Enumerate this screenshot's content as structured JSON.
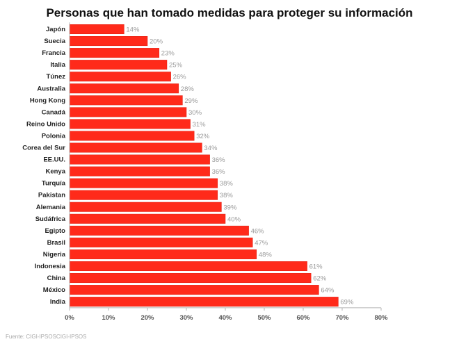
{
  "source_note": "Fuente: CIGI-IPSOSCIGI-IPSOS",
  "colors": {
    "bar": "#ff2a1a",
    "bar_stroke": "#e01f10",
    "value_label": "#9a9a9a",
    "category_label": "#222222",
    "axis": "#b5b5b5",
    "grid": "#e3e3e3",
    "note": "#aaaaaa"
  },
  "chart_data": {
    "type": "bar",
    "orientation": "horizontal",
    "title": "Personas que han tomado medidas para proteger su información",
    "categories": [
      "Japón",
      "Suecia",
      "Francia",
      "Italia",
      "Túnez",
      "Australia",
      "Hong Kong",
      "Canadá",
      "Reino Unido",
      "Polonia",
      "Corea del Sur",
      "EE.UU.",
      "Kenya",
      "Turquía",
      "Pakistan",
      "Alemania",
      "Sudáfrica",
      "Egipto",
      "Brasil",
      "Nigeria",
      "Indonesia",
      "China",
      "México",
      "India"
    ],
    "values": [
      14,
      20,
      23,
      25,
      26,
      28,
      29,
      30,
      31,
      32,
      34,
      36,
      36,
      38,
      38,
      39,
      40,
      46,
      47,
      48,
      61,
      62,
      64,
      69
    ],
    "value_labels": [
      "14%",
      "20%",
      "23%",
      "25%",
      "26%",
      "28%",
      "29%",
      "30%",
      "31%",
      "32%",
      "34%",
      "36%",
      "36%",
      "38%",
      "38%",
      "39%",
      "40%",
      "46%",
      "47%",
      "48%",
      "61%",
      "62%",
      "64%",
      "69%"
    ],
    "xlim": [
      0,
      80
    ],
    "xticks": [
      0,
      10,
      20,
      30,
      40,
      50,
      60,
      70,
      80
    ],
    "xtick_labels": [
      "0%",
      "10%",
      "20%",
      "30%",
      "40%",
      "50%",
      "60%",
      "70%",
      "80%"
    ],
    "xlabel": "",
    "ylabel": "",
    "grid": false,
    "legend": "none"
  }
}
